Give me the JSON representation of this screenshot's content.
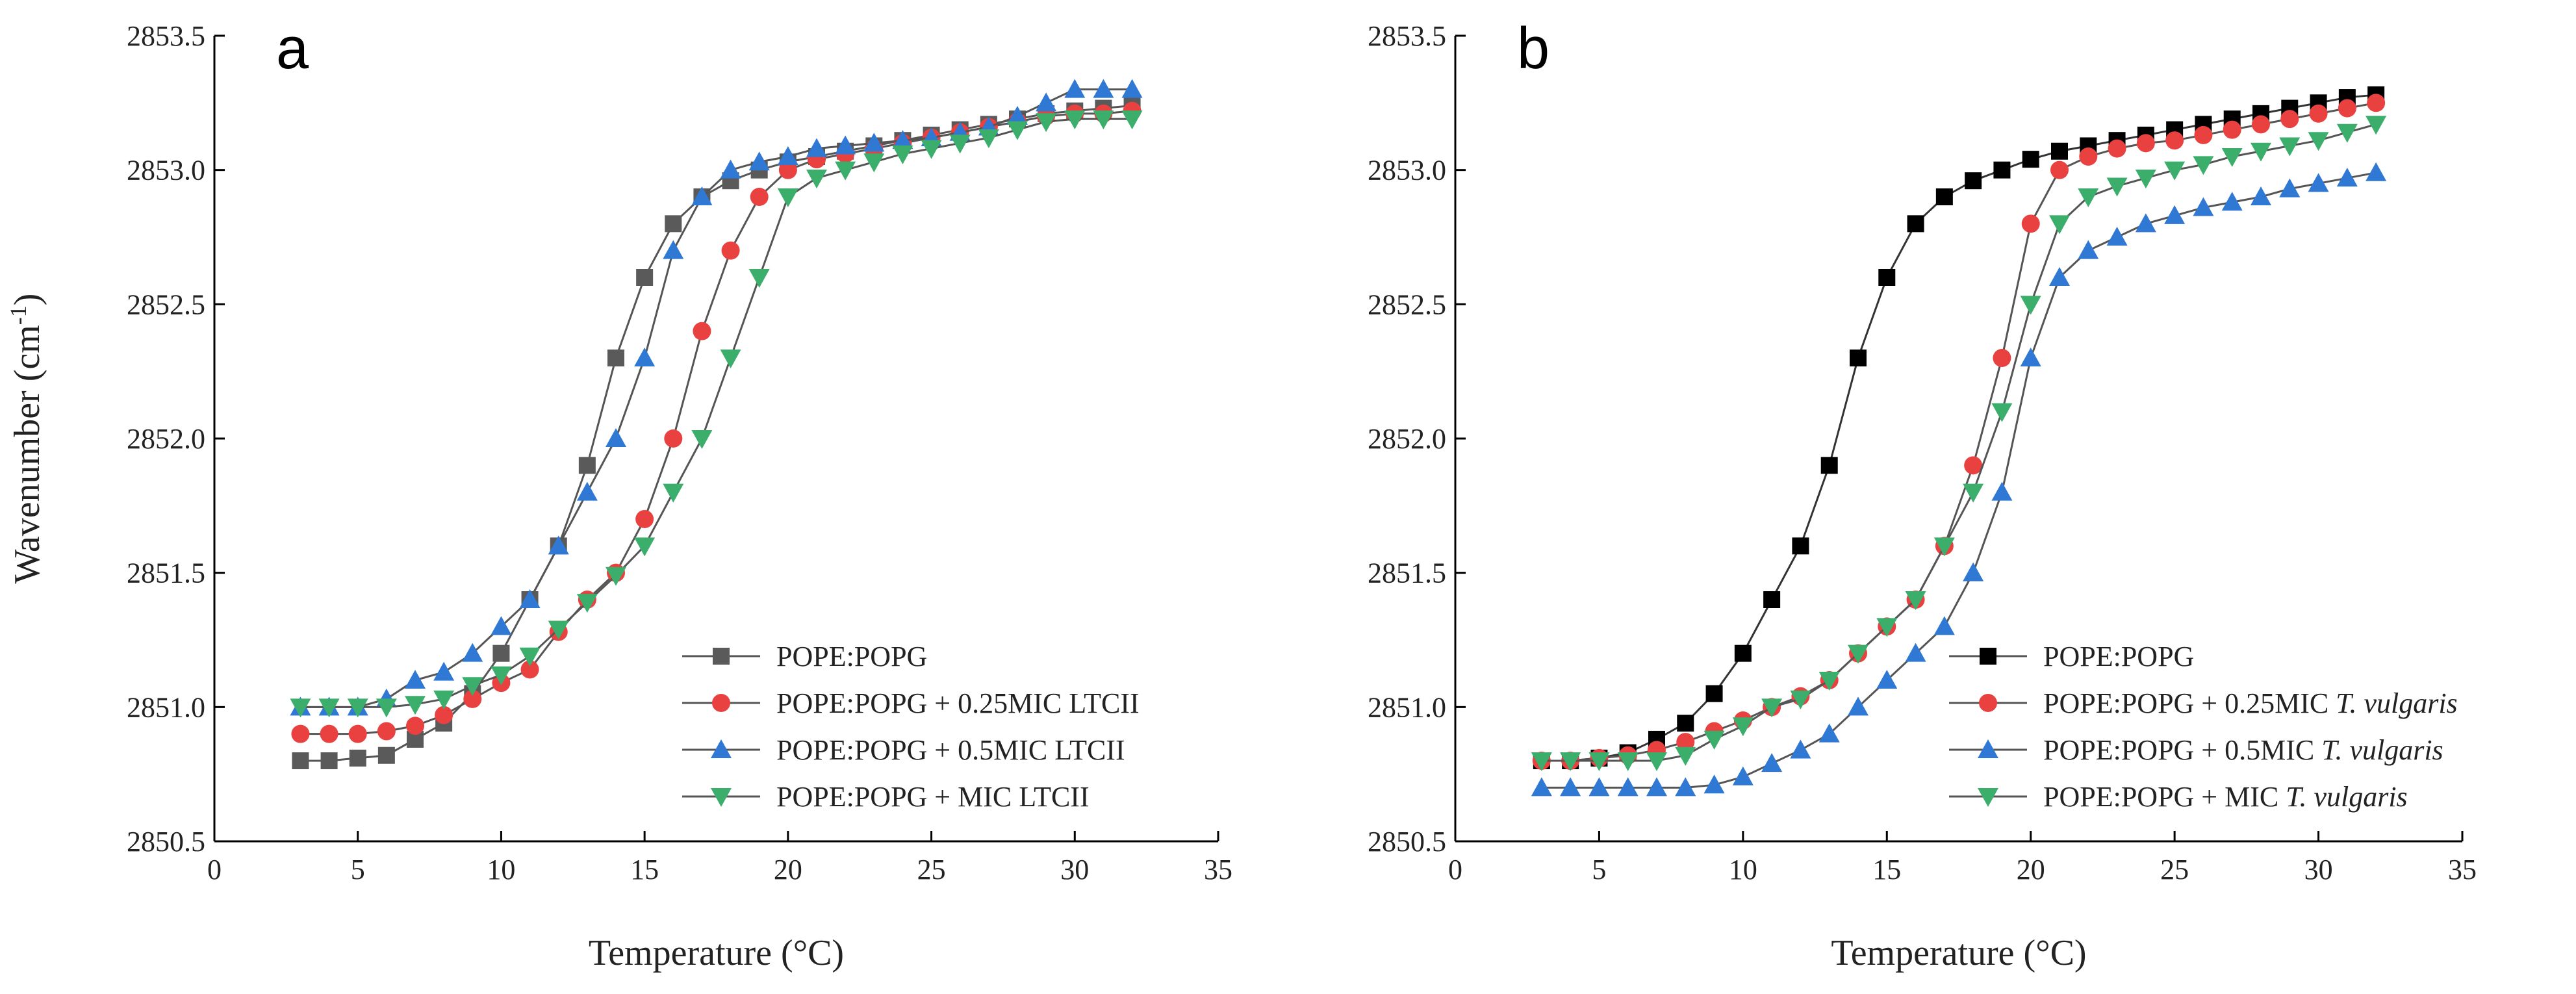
{
  "chart_data": [
    {
      "type": "line",
      "panel_label": "a",
      "xlabel": "Temperature (°C)",
      "ylabel": "Wavenumber (cm",
      "ylabel_sup": "-1",
      "ylabel_close": ")",
      "xlim": [
        0,
        35
      ],
      "ylim": [
        2850.5,
        2853.5
      ],
      "xticks": [
        0,
        5,
        10,
        15,
        20,
        25,
        30,
        35
      ],
      "yticks": [
        2850.5,
        2851.0,
        2851.5,
        2852.0,
        2852.5,
        2853.0,
        2853.5
      ],
      "ytick_labels": [
        "2850.5",
        "2851.0",
        "2851.5",
        "2852.0",
        "2852.5",
        "2853.0",
        "2853.5"
      ],
      "legend_position": "lower-right",
      "x": [
        3,
        4,
        5,
        6,
        7,
        8,
        9,
        10,
        11,
        12,
        13,
        14,
        15,
        16,
        17,
        18,
        19,
        20,
        21,
        22,
        23,
        24,
        25,
        26,
        27,
        28,
        29,
        30,
        31,
        32
      ],
      "series": [
        {
          "name": "POPE:POPG",
          "name_parts": [
            {
              "text": "POPE:POPG",
              "italic": false
            }
          ],
          "color": "#5a5a5a",
          "marker": "square",
          "values": [
            2850.8,
            2850.8,
            2850.81,
            2850.82,
            2850.88,
            2850.94,
            2851.05,
            2851.2,
            2851.4,
            2851.6,
            2851.9,
            2852.3,
            2852.6,
            2852.8,
            2852.9,
            2852.96,
            2853.0,
            2853.03,
            2853.05,
            2853.07,
            2853.09,
            2853.11,
            2853.13,
            2853.15,
            2853.17,
            2853.19,
            2853.21,
            2853.22,
            2853.23,
            2853.24
          ]
        },
        {
          "name": "POPE:POPG + 0.25MIC LTCII",
          "name_parts": [
            {
              "text": "POPE:POPG + 0.25MIC LTCII",
              "italic": false
            }
          ],
          "color": "#e8413f",
          "marker": "circle",
          "values": [
            2850.9,
            2850.9,
            2850.9,
            2850.91,
            2850.93,
            2850.97,
            2851.03,
            2851.09,
            2851.14,
            2851.28,
            2851.4,
            2851.5,
            2851.7,
            2852.0,
            2852.4,
            2852.7,
            2852.9,
            2853.0,
            2853.04,
            2853.06,
            2853.08,
            2853.1,
            2853.12,
            2853.14,
            2853.16,
            2853.18,
            2853.2,
            2853.21,
            2853.21,
            2853.22
          ]
        },
        {
          "name": "POPE:POPG + 0.5MIC LTCII",
          "name_parts": [
            {
              "text": "POPE:POPG + 0.5MIC LTCII",
              "italic": false
            }
          ],
          "color": "#2f78d4",
          "marker": "triangle-up",
          "values": [
            2851.0,
            2851.0,
            2851.0,
            2851.03,
            2851.1,
            2851.13,
            2851.2,
            2851.3,
            2851.4,
            2851.6,
            2851.8,
            2852.0,
            2852.3,
            2852.7,
            2852.9,
            2853.0,
            2853.03,
            2853.05,
            2853.08,
            2853.09,
            2853.1,
            2853.11,
            2853.12,
            2853.14,
            2853.16,
            2853.2,
            2853.25,
            2853.3,
            2853.3,
            2853.3
          ]
        },
        {
          "name": "POPE:POPG + MIC LTCII",
          "name_parts": [
            {
              "text": "POPE:POPG + MIC LTCII",
              "italic": false
            }
          ],
          "color": "#3cae6c",
          "marker": "triangle-down",
          "values": [
            2851.0,
            2851.0,
            2851.0,
            2851.0,
            2851.01,
            2851.03,
            2851.08,
            2851.12,
            2851.19,
            2851.29,
            2851.39,
            2851.49,
            2851.6,
            2851.8,
            2852.0,
            2852.3,
            2852.6,
            2852.9,
            2852.97,
            2853.0,
            2853.03,
            2853.06,
            2853.08,
            2853.1,
            2853.12,
            2853.15,
            2853.18,
            2853.19,
            2853.19,
            2853.19
          ]
        }
      ]
    },
    {
      "type": "line",
      "panel_label": "b",
      "xlabel": "Temperature (°C)",
      "xlim": [
        0,
        35
      ],
      "ylim": [
        2850.5,
        2853.5
      ],
      "xticks": [
        0,
        5,
        10,
        15,
        20,
        25,
        30,
        35
      ],
      "yticks": [
        2850.5,
        2851.0,
        2851.5,
        2852.0,
        2852.5,
        2853.0,
        2853.5
      ],
      "ytick_labels": [
        "2850.5",
        "2851.0",
        "2851.5",
        "2852.0",
        "2852.5",
        "2853.0",
        "2853.5"
      ],
      "legend_position": "lower-right",
      "x": [
        3,
        4,
        5,
        6,
        7,
        8,
        9,
        10,
        11,
        12,
        13,
        14,
        15,
        16,
        17,
        18,
        19,
        20,
        21,
        22,
        23,
        24,
        25,
        26,
        27,
        28,
        29,
        30,
        31,
        32
      ],
      "series": [
        {
          "name": "POPE:POPG",
          "name_parts": [
            {
              "text": "POPE:POPG",
              "italic": false
            }
          ],
          "color": "#000000",
          "marker": "square",
          "values": [
            2850.8,
            2850.8,
            2850.81,
            2850.83,
            2850.88,
            2850.94,
            2851.05,
            2851.2,
            2851.4,
            2851.6,
            2851.9,
            2852.3,
            2852.6,
            2852.8,
            2852.9,
            2852.96,
            2853.0,
            2853.04,
            2853.07,
            2853.09,
            2853.11,
            2853.13,
            2853.15,
            2853.17,
            2853.19,
            2853.21,
            2853.23,
            2853.25,
            2853.27,
            2853.28
          ]
        },
        {
          "name": "POPE:POPG + 0.25MIC T. vulgaris",
          "name_parts": [
            {
              "text": "POPE:POPG + 0.25MIC ",
              "italic": false
            },
            {
              "text": "T. vulgaris",
              "italic": true
            }
          ],
          "color": "#e8413f",
          "marker": "circle",
          "values": [
            2850.8,
            2850.8,
            2850.81,
            2850.82,
            2850.84,
            2850.87,
            2850.91,
            2850.95,
            2851.0,
            2851.04,
            2851.1,
            2851.2,
            2851.3,
            2851.4,
            2851.6,
            2851.9,
            2852.3,
            2852.8,
            2853.0,
            2853.05,
            2853.08,
            2853.1,
            2853.11,
            2853.13,
            2853.15,
            2853.17,
            2853.19,
            2853.21,
            2853.23,
            2853.25
          ]
        },
        {
          "name": "POPE:POPG + 0.5MIC T. vulgaris",
          "name_parts": [
            {
              "text": "POPE:POPG + 0.5MIC ",
              "italic": false
            },
            {
              "text": "T. vulgaris",
              "italic": true
            }
          ],
          "color": "#2f78d4",
          "marker": "triangle-up",
          "values": [
            2850.7,
            2850.7,
            2850.7,
            2850.7,
            2850.7,
            2850.7,
            2850.71,
            2850.74,
            2850.79,
            2850.84,
            2850.9,
            2851.0,
            2851.1,
            2851.2,
            2851.3,
            2851.5,
            2851.8,
            2852.3,
            2852.6,
            2852.7,
            2852.75,
            2852.8,
            2852.83,
            2852.86,
            2852.88,
            2852.9,
            2852.93,
            2852.95,
            2852.97,
            2852.99
          ]
        },
        {
          "name": "POPE:POPG + MIC T. vulgaris",
          "name_parts": [
            {
              "text": "POPE:POPG + MIC ",
              "italic": false
            },
            {
              "text": "T. vulgaris",
              "italic": true
            }
          ],
          "color": "#3cae6c",
          "marker": "triangle-down",
          "values": [
            2850.8,
            2850.8,
            2850.8,
            2850.8,
            2850.8,
            2850.82,
            2850.88,
            2850.93,
            2851.0,
            2851.03,
            2851.1,
            2851.2,
            2851.3,
            2851.4,
            2851.6,
            2851.8,
            2852.1,
            2852.5,
            2852.8,
            2852.9,
            2852.94,
            2852.97,
            2853.0,
            2853.02,
            2853.05,
            2853.07,
            2853.09,
            2853.11,
            2853.14,
            2853.17
          ]
        }
      ]
    }
  ]
}
